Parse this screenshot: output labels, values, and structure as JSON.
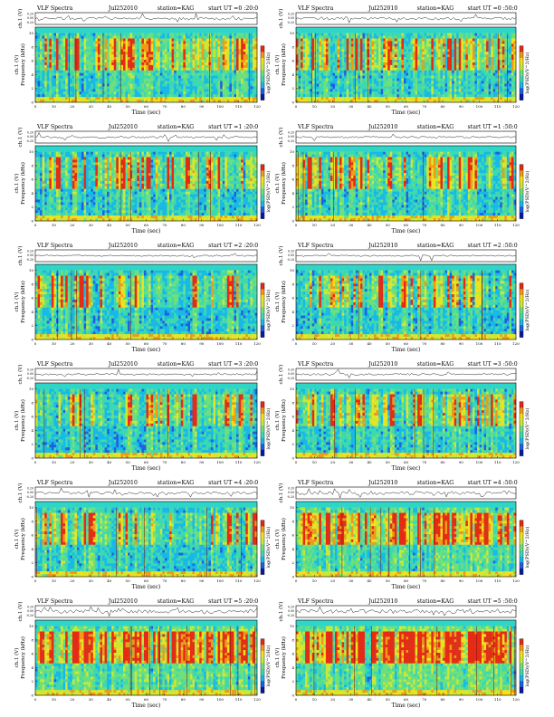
{
  "page": {
    "time_label": "Time (sec)",
    "waveform_label": "ch.1 (V)",
    "freq_label": "Frequency (kHz)",
    "colorbar_label": "log(PSD)(V^2/Hz)",
    "x_ticks": [
      "0",
      "10",
      "20",
      "30",
      "40",
      "50",
      "60",
      "70",
      "80",
      "90",
      "100",
      "110",
      "120"
    ],
    "y_ticks": [
      "0",
      "2",
      "4",
      "6",
      "8",
      "10"
    ],
    "v_ticks": [
      "0.20",
      "0.00",
      "-0.20"
    ]
  },
  "chart_data": [
    {
      "type": "heatmap",
      "panel": "VLF Spectra",
      "date": "Jul252010",
      "station": "station=KAG",
      "start": "start UT =0 :20:0",
      "xlim": [
        0,
        120
      ],
      "ylim": [
        0,
        10
      ],
      "activity": 0.55,
      "seed": 11
    },
    {
      "type": "heatmap",
      "panel": "VLF Spectra",
      "date": "Jul252010",
      "station": "station=KAG",
      "start": "start UT =0 :50:0",
      "xlim": [
        0,
        120
      ],
      "ylim": [
        0,
        10
      ],
      "activity": 0.5,
      "seed": 23
    },
    {
      "type": "heatmap",
      "panel": "VLF Spectra",
      "date": "Jul252010",
      "station": "station=KAG",
      "start": "start UT =1 :20:0",
      "xlim": [
        0,
        120
      ],
      "ylim": [
        0,
        10
      ],
      "activity": 0.3,
      "seed": 37
    },
    {
      "type": "heatmap",
      "panel": "VLF Spectra",
      "date": "Jul252010",
      "station": "station=KAG",
      "start": "start UT =1 :50:0",
      "xlim": [
        0,
        120
      ],
      "ylim": [
        0,
        10
      ],
      "activity": 0.28,
      "seed": 41
    },
    {
      "type": "heatmap",
      "panel": "VLF Spectra",
      "date": "Jul252010",
      "station": "station=KAG",
      "start": "start UT =2 :20:0",
      "xlim": [
        0,
        120
      ],
      "ylim": [
        0,
        10
      ],
      "activity": 0.22,
      "seed": 53
    },
    {
      "type": "heatmap",
      "panel": "VLF Spectra",
      "date": "Jul252010",
      "station": "station=KAG",
      "start": "start UT =2 :50:0",
      "xlim": [
        0,
        120
      ],
      "ylim": [
        0,
        10
      ],
      "activity": 0.18,
      "seed": 67
    },
    {
      "type": "heatmap",
      "panel": "VLF Spectra",
      "date": "Jul252010",
      "station": "station=KAG",
      "start": "start UT =3 :20:0",
      "xlim": [
        0,
        120
      ],
      "ylim": [
        0,
        10
      ],
      "activity": 0.25,
      "seed": 71
    },
    {
      "type": "heatmap",
      "panel": "VLF Spectra",
      "date": "Jul252010",
      "station": "station=KAG",
      "start": "start UT =3 :50:0",
      "xlim": [
        0,
        120
      ],
      "ylim": [
        0,
        10
      ],
      "activity": 0.38,
      "seed": 83
    },
    {
      "type": "heatmap",
      "panel": "VLF Spectra",
      "date": "Jul252010",
      "station": "station=KAG",
      "start": "start UT =4 :20:0",
      "xlim": [
        0,
        120
      ],
      "ylim": [
        0,
        10
      ],
      "activity": 0.45,
      "seed": 97
    },
    {
      "type": "heatmap",
      "panel": "VLF Spectra",
      "date": "Jul252010",
      "station": "station=KAG",
      "start": "start UT =4 :50:0",
      "xlim": [
        0,
        120
      ],
      "ylim": [
        0,
        10
      ],
      "activity": 0.8,
      "seed": 101
    },
    {
      "type": "heatmap",
      "panel": "VLF Spectra",
      "date": "Jul252010",
      "station": "station=KAG",
      "start": "start UT =5 :20:0",
      "xlim": [
        0,
        120
      ],
      "ylim": [
        0,
        10
      ],
      "activity": 0.85,
      "seed": 113
    },
    {
      "type": "heatmap",
      "panel": "VLF Spectra",
      "date": "Jul252010",
      "station": "station=KAG",
      "start": "start UT =5 :50:0",
      "xlim": [
        0,
        120
      ],
      "ylim": [
        0,
        10
      ],
      "activity": 0.92,
      "seed": 127
    }
  ]
}
